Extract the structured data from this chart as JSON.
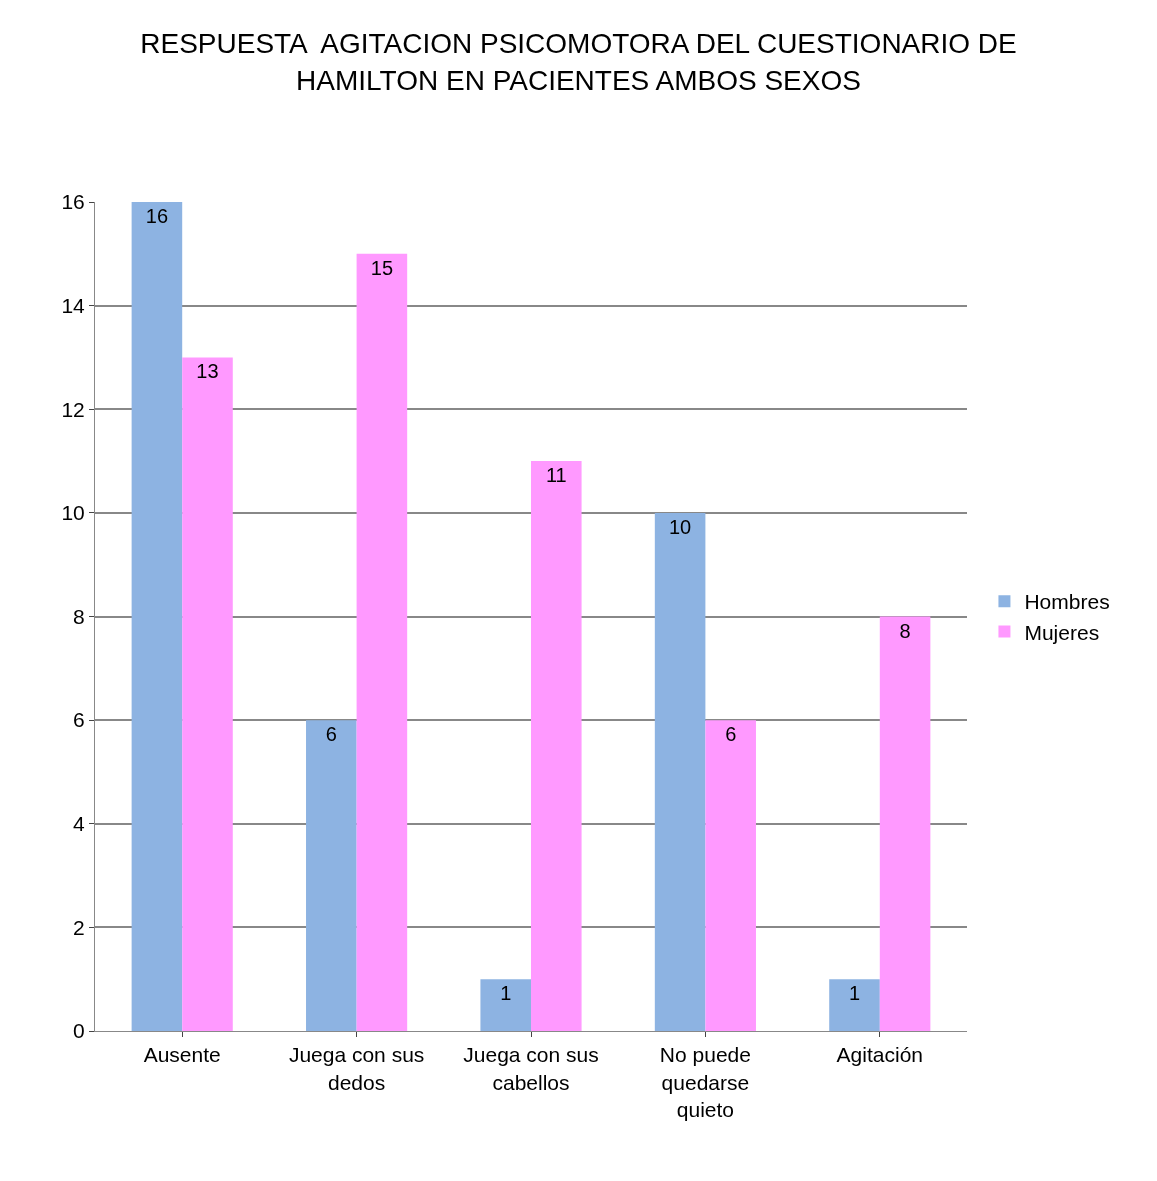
{
  "chart_data": {
    "type": "bar",
    "title": "RESPUESTA  AGITACION PSICOMOTORA DEL CUESTIONARIO DE HAMILTON EN PACIENTES AMBOS SEXOS",
    "categories": [
      "Ausente",
      "Juega con sus dedos",
      "Juega con sus cabellos",
      "No puede quedarse quieto",
      "Agitación"
    ],
    "series": [
      {
        "name": "Hombres",
        "color": "#8db3e2",
        "values": [
          16,
          6,
          1,
          10,
          1
        ]
      },
      {
        "name": "Mujeres",
        "color": "#ff99ff",
        "values": [
          13,
          15,
          11,
          6,
          8
        ]
      }
    ],
    "ylim": [
      0,
      16
    ],
    "yticks": [
      0,
      2,
      4,
      6,
      8,
      10,
      12,
      14,
      16
    ],
    "grid": "y",
    "legend": "right",
    "data_labels": true
  }
}
